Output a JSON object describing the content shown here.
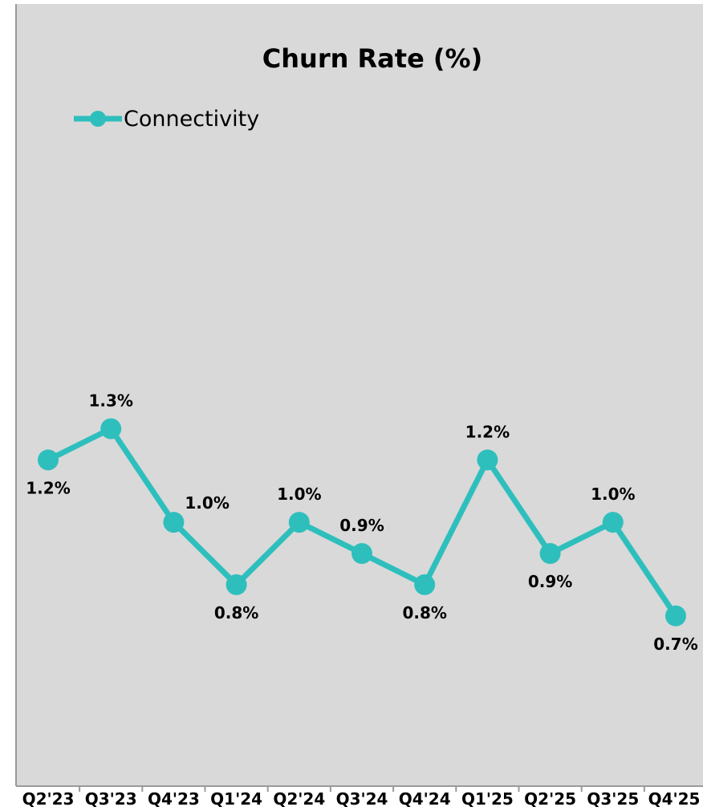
{
  "chart_data": {
    "type": "line",
    "title": "Churn Rate (%)",
    "xlabel": "",
    "ylabel": "",
    "categories": [
      "Q2'23",
      "Q3'23",
      "Q4'23",
      "Q1'24",
      "Q2'24",
      "Q3'24",
      "Q4'24",
      "Q1'25",
      "Q2'25",
      "Q3'25",
      "Q4'25"
    ],
    "series": [
      {
        "name": "Connectivity",
        "values": [
          1.2,
          1.3,
          1.0,
          0.8,
          1.0,
          0.9,
          0.8,
          1.2,
          0.9,
          1.0,
          0.7
        ],
        "labels": [
          "1.2%",
          "1.3%",
          "1.0%",
          "0.8%",
          "1.0%",
          "0.9%",
          "0.8%",
          "1.2%",
          "0.9%",
          "1.0%",
          "0.7%"
        ],
        "label_placement": [
          "below",
          "above",
          "right",
          "below",
          "above",
          "above",
          "below",
          "above",
          "below",
          "above",
          "below"
        ],
        "color": "#2ebfbd"
      }
    ],
    "ylim": [
      0.0,
      1.8
    ],
    "grid": false,
    "legend_position": "top-left",
    "background_color": "#d9d9d9",
    "axis_color": "#9a9a9a"
  }
}
